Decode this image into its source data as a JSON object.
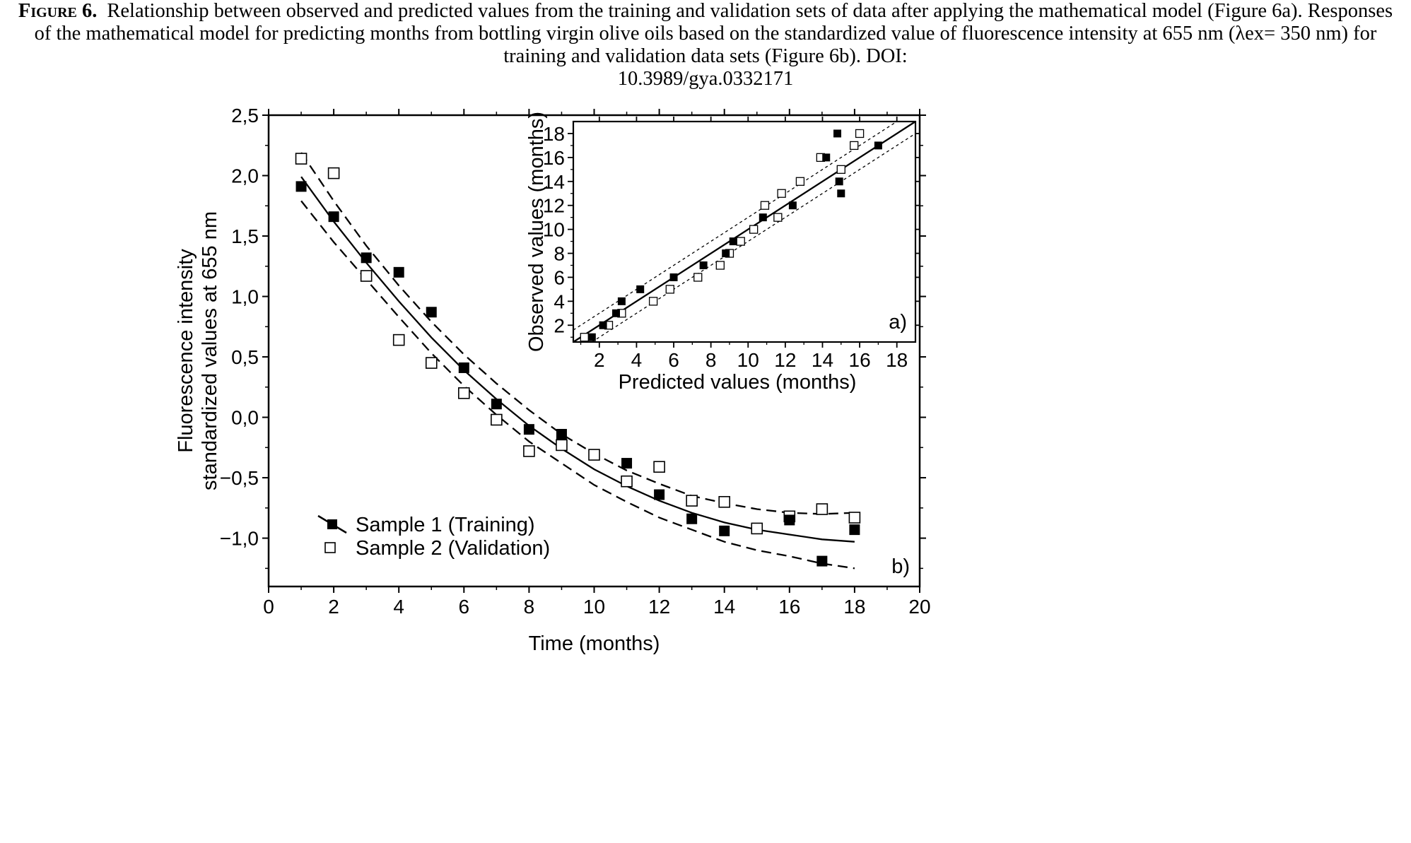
{
  "caption": {
    "label": "Figure 6.",
    "text": "Relationship between observed and predicted values from the training and validation sets of data after applying the mathematical model (Figure 6a). Responses of the mathematical model for predicting months from bottling virgin olive oils based on the standardized value of fluorescence intensity at 655 nm (λex= 350 nm) for training and validation data sets (Figure 6b). DOI:",
    "doi": "10.3989/gya.0332171"
  },
  "chart_data": [
    {
      "panel": "b)",
      "type": "scatter",
      "xlabel": "Time (months)",
      "ylabel": [
        "Fluorescence intensity",
        "standardized values at 655 nm"
      ],
      "xlim": [
        0,
        20
      ],
      "ylim": [
        -1.4,
        2.5
      ],
      "xticks": [
        0,
        2,
        4,
        6,
        8,
        10,
        12,
        14,
        16,
        18,
        20
      ],
      "xtick_labels": [
        "0",
        "2",
        "4",
        "6",
        "8",
        "10",
        "12",
        "14",
        "16",
        "18",
        "20"
      ],
      "yticks": [
        -1.0,
        -0.5,
        0.0,
        0.5,
        1.0,
        1.5,
        2.0,
        2.5
      ],
      "ytick_labels": [
        "−1,0",
        "−0,5",
        "0,0",
        "0,5",
        "1,0",
        "1,5",
        "2,0",
        "2,5"
      ],
      "legend_position": "bottom-left",
      "series": [
        {
          "name": "Sample 1 (Training)",
          "marker": "filled-square",
          "x": [
            1,
            2,
            3,
            4,
            5,
            6,
            7,
            8,
            9,
            11,
            12,
            13,
            14,
            16,
            17,
            18
          ],
          "y": [
            1.91,
            1.66,
            1.32,
            1.2,
            0.87,
            0.41,
            0.11,
            -0.1,
            -0.14,
            -0.38,
            -0.64,
            -0.84,
            -0.94,
            -0.85,
            -1.19,
            -0.93
          ]
        },
        {
          "name": "Sample 2 (Validation)",
          "marker": "open-square",
          "x": [
            1,
            2,
            3,
            4,
            5,
            6,
            7,
            8,
            9,
            10,
            11,
            12,
            13,
            14,
            15,
            16,
            17,
            18
          ],
          "y": [
            2.14,
            2.02,
            1.17,
            0.64,
            0.45,
            0.2,
            -0.02,
            -0.28,
            -0.23,
            -0.31,
            -0.53,
            -0.41,
            -0.69,
            -0.7,
            -0.92,
            -0.82,
            -0.76,
            -0.83
          ]
        }
      ],
      "fit": {
        "x": [
          1,
          2,
          3,
          4,
          5,
          6,
          7,
          8,
          9,
          10,
          11,
          12,
          13,
          14,
          15,
          16,
          17,
          18
        ],
        "y": [
          1.99,
          1.62,
          1.28,
          0.96,
          0.66,
          0.39,
          0.15,
          -0.07,
          -0.26,
          -0.43,
          -0.57,
          -0.69,
          -0.79,
          -0.87,
          -0.93,
          -0.97,
          -1.01,
          -1.03
        ],
        "upper": [
          2.19,
          1.79,
          1.42,
          1.09,
          0.79,
          0.52,
          0.28,
          0.06,
          -0.14,
          -0.3,
          -0.44,
          -0.55,
          -0.65,
          -0.71,
          -0.76,
          -0.79,
          -0.8,
          -0.79
        ],
        "lower": [
          1.79,
          1.45,
          1.14,
          0.83,
          0.53,
          0.26,
          0.02,
          -0.2,
          -0.38,
          -0.56,
          -0.7,
          -0.83,
          -0.93,
          -1.03,
          -1.1,
          -1.15,
          -1.21,
          -1.25
        ]
      }
    },
    {
      "panel": "a)",
      "type": "scatter",
      "xlabel": "Predicted values (months)",
      "ylabel": "Observed values (months)",
      "xlim": [
        0.6,
        19.0
      ],
      "ylim": [
        0.6,
        19.0
      ],
      "xticks": [
        2,
        4,
        6,
        8,
        10,
        12,
        14,
        16,
        18
      ],
      "yticks": [
        2,
        4,
        6,
        8,
        10,
        12,
        14,
        16,
        18
      ],
      "series": [
        {
          "name": "Training",
          "marker": "filled-square",
          "x": [
            1.6,
            2.2,
            2.9,
            3.2,
            4.2,
            6.0,
            7.6,
            8.8,
            9.2,
            10.8,
            12.4,
            14.2,
            14.8,
            15.0,
            14.9,
            17.0
          ],
          "y": [
            1.0,
            2.0,
            3.0,
            4.0,
            5.0,
            6.0,
            7.0,
            8.0,
            9.0,
            11.0,
            12.0,
            16.0,
            18.0,
            13.0,
            14.0,
            17.0
          ]
        },
        {
          "name": "Validation",
          "marker": "open-square",
          "x": [
            1.2,
            2.5,
            3.2,
            4.9,
            5.8,
            7.3,
            8.5,
            9.0,
            9.6,
            10.3,
            10.9,
            11.6,
            11.8,
            12.8,
            13.9,
            15.0,
            15.7,
            16.0
          ],
          "y": [
            1.0,
            2.0,
            3.0,
            4.0,
            5.0,
            6.0,
            7.0,
            8.0,
            9.0,
            10.0,
            12.0,
            11.0,
            13.0,
            14.0,
            16.0,
            15.0,
            17.0,
            18.0
          ]
        }
      ],
      "fit": {
        "x": [
          0.6,
          19.0
        ],
        "y": [
          0.6,
          19.0
        ],
        "band_offset": 1.0
      }
    }
  ]
}
